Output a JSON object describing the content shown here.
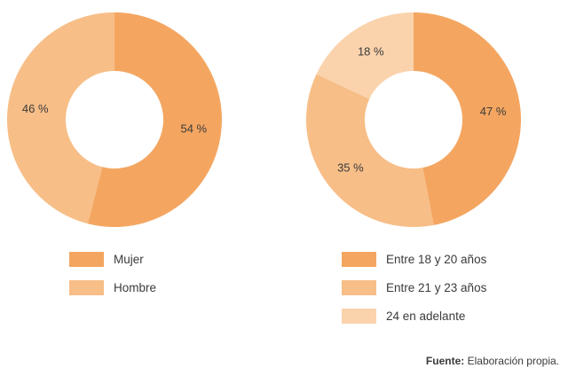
{
  "chart_data": [
    {
      "type": "pie",
      "donut": true,
      "slices": [
        {
          "label": "Mujer",
          "value": 54,
          "display": "54 %",
          "color": "#F4A661"
        },
        {
          "label": "Hombre",
          "value": 46,
          "display": "46 %",
          "color": "#F7BE87"
        }
      ]
    },
    {
      "type": "pie",
      "donut": true,
      "slices": [
        {
          "label": "Entre 18 y 20 años",
          "value": 47,
          "display": "47 %",
          "color": "#F4A661"
        },
        {
          "label": "Entre 21 y 23 años",
          "value": 35,
          "display": "35 %",
          "color": "#F7BE87"
        },
        {
          "label": "24 en adelante",
          "value": 18,
          "display": "18 %",
          "color": "#FAD3AD"
        }
      ]
    }
  ],
  "source": {
    "label": "Fuente:",
    "text": "Elaboración propia."
  }
}
